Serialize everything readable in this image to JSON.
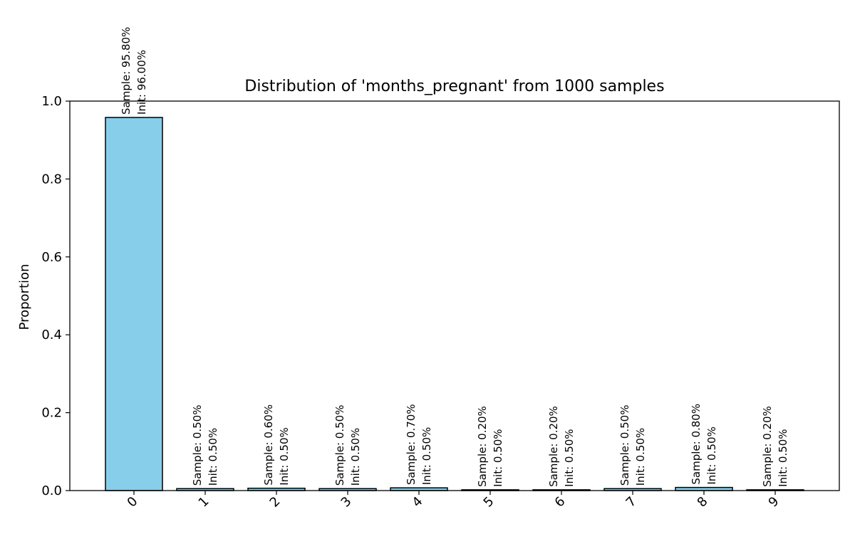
{
  "chart_data": {
    "type": "bar",
    "title": "Distribution of 'months_pregnant' from 1000 samples",
    "xlabel": "",
    "ylabel": "Proportion",
    "ylim": [
      0,
      1.0
    ],
    "yticks": [
      "0.0",
      "0.2",
      "0.4",
      "0.6",
      "0.8",
      "1.0"
    ],
    "categories": [
      "0",
      "1",
      "2",
      "3",
      "4",
      "5",
      "6",
      "7",
      "8",
      "9"
    ],
    "values": [
      0.958,
      0.005,
      0.006,
      0.005,
      0.007,
      0.002,
      0.002,
      0.005,
      0.008,
      0.002
    ],
    "labels": [
      {
        "sample": "Sample: 95.80%",
        "init": "Init: 96.00%"
      },
      {
        "sample": "Sample: 0.50%",
        "init": "Init: 0.50%"
      },
      {
        "sample": "Sample: 0.60%",
        "init": "Init: 0.50%"
      },
      {
        "sample": "Sample: 0.50%",
        "init": "Init: 0.50%"
      },
      {
        "sample": "Sample: 0.70%",
        "init": "Init: 0.50%"
      },
      {
        "sample": "Sample: 0.20%",
        "init": "Init: 0.50%"
      },
      {
        "sample": "Sample: 0.20%",
        "init": "Init: 0.50%"
      },
      {
        "sample": "Sample: 0.50%",
        "init": "Init: 0.50%"
      },
      {
        "sample": "Sample: 0.80%",
        "init": "Init: 0.50%"
      },
      {
        "sample": "Sample: 0.20%",
        "init": "Init: 0.50%"
      }
    ],
    "bar_color": "#87ceeb",
    "edge_color": "#000000",
    "grid": false,
    "legend": "none"
  }
}
